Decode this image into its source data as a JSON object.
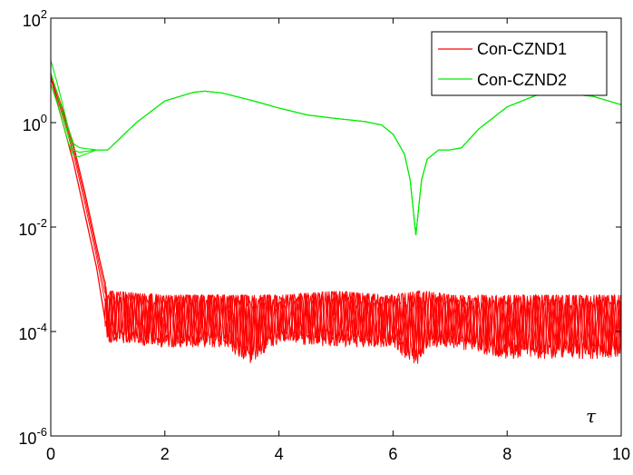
{
  "chart_data": {
    "type": "line",
    "xlabel": "τ",
    "ylabel": "",
    "xlim": [
      0,
      10
    ],
    "ylim": [
      1e-06,
      100
    ],
    "yscale": "log",
    "grid": false,
    "legend_position": "top-right",
    "x_ticks": [
      "0",
      "2",
      "4",
      "6",
      "8",
      "10"
    ],
    "y_ticks": [
      {
        "base": "10",
        "exp": "2"
      },
      {
        "base": "10",
        "exp": "0"
      },
      {
        "base": "10",
        "exp": "-2"
      },
      {
        "base": "10",
        "exp": "-4"
      },
      {
        "base": "10",
        "exp": "-6"
      }
    ],
    "series": [
      {
        "name": "Con-CZND1",
        "color": "#ff0000",
        "description": "bundle of lines; decays exponentially then oscillates between about 1e-5 and 6e-4",
        "envelope": {
          "x": [
            0,
            0.2,
            0.4,
            0.6,
            0.8,
            1.0,
            2,
            3,
            3.5,
            4,
            5,
            6,
            6.4,
            6.6,
            7,
            8,
            9,
            9.5,
            10
          ],
          "upper": [
            9,
            2.0,
            0.4,
            0.05,
            0.005,
            0.0006,
            0.0005,
            0.0005,
            0.0005,
            0.0005,
            0.0006,
            0.0005,
            0.0006,
            0.0006,
            0.0005,
            0.0005,
            0.0005,
            0.0005,
            0.0005
          ],
          "lower": [
            7,
            1.0,
            0.15,
            0.015,
            0.0015,
            6e-05,
            5e-05,
            5e-05,
            2.5e-05,
            6e-05,
            5e-05,
            5e-05,
            2e-05,
            5e-05,
            5e-05,
            3e-05,
            3e-05,
            3e-05,
            3e-05
          ]
        }
      },
      {
        "name": "Con-CZND2",
        "color": "#00ee00",
        "x": [
          0,
          0.1,
          0.2,
          0.3,
          0.4,
          0.5,
          0.6,
          0.8,
          1.0,
          1.5,
          2.0,
          2.5,
          2.7,
          3.0,
          3.5,
          4.0,
          4.5,
          5.0,
          5.5,
          5.8,
          6.0,
          6.2,
          6.3,
          6.4,
          6.5,
          6.6,
          6.8,
          7.0,
          7.2,
          7.5,
          8.0,
          8.5,
          8.8,
          9.0,
          9.5,
          10.0
        ],
        "y": [
          9,
          4,
          1.6,
          0.6,
          0.3,
          0.27,
          0.28,
          0.3,
          0.3,
          1.0,
          2.6,
          3.8,
          4.0,
          3.7,
          2.7,
          1.9,
          1.4,
          1.2,
          1.05,
          0.9,
          0.6,
          0.25,
          0.08,
          0.007,
          0.08,
          0.2,
          0.3,
          0.3,
          0.33,
          0.75,
          2.0,
          3.3,
          3.6,
          3.6,
          3.2,
          2.2
        ]
      }
    ]
  }
}
